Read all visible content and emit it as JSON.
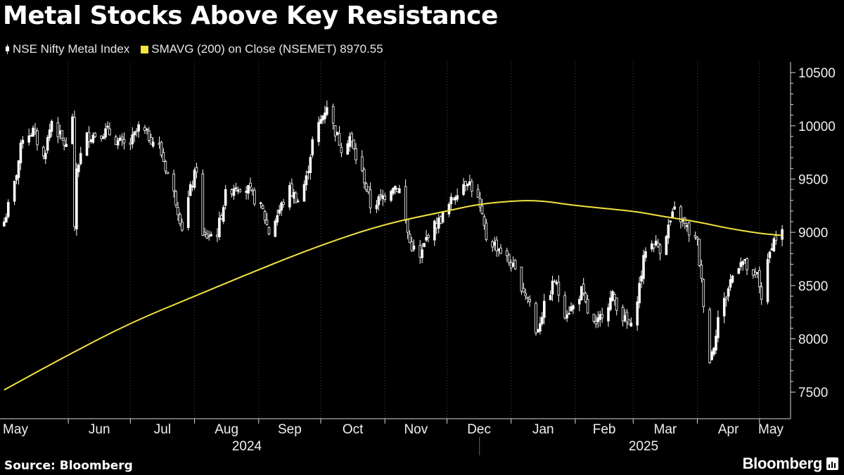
{
  "header": {
    "title": "Metal Stocks Above Key Resistance",
    "legend": [
      {
        "label": "NSE Nifty Metal Index",
        "color": "#ffffff",
        "icon": "candlestick-icon"
      },
      {
        "label": "SMAVG (200)  on Close (NSEMET) 8970.55",
        "color": "#f2e341",
        "icon": "square-swatch"
      }
    ]
  },
  "footer": {
    "source": "Source: Bloomberg",
    "brand": "Bloomberg"
  },
  "colors": {
    "background": "#000000",
    "candles": "#ffffff",
    "sma": "#f2e341",
    "axis": "#d9d9d9",
    "grid": "#4a4a4a"
  },
  "chart_data": {
    "type": "line",
    "title": "Metal Stocks Above Key Resistance",
    "yaxis": {
      "position": "right",
      "range": [
        7250,
        10600
      ],
      "ticks": [
        7500,
        8000,
        8500,
        9000,
        9500,
        10000,
        10500
      ]
    },
    "xaxis": {
      "months": [
        "May",
        "Jun",
        "Jul",
        "Aug",
        "Sep",
        "Oct",
        "Nov",
        "Dec",
        "Jan",
        "Feb",
        "Mar",
        "Apr",
        "May"
      ],
      "years": [
        "2024",
        "2025"
      ]
    },
    "grid": "vertical dotted at month boundaries",
    "series": [
      {
        "name": "NSE Nifty Metal Index",
        "kind": "candlestick-daily-close",
        "keypoints": [
          [
            "2024-05-01",
            9100
          ],
          [
            "2024-05-06",
            9450
          ],
          [
            "2024-05-10",
            9900
          ],
          [
            "2024-05-15",
            9950
          ],
          [
            "2024-05-20",
            9700
          ],
          [
            "2024-05-24",
            10050
          ],
          [
            "2024-05-28",
            9900
          ],
          [
            "2024-05-31",
            9800
          ],
          [
            "2024-06-03",
            10100
          ],
          [
            "2024-06-04",
            9000
          ],
          [
            "2024-06-05",
            9600
          ],
          [
            "2024-06-10",
            9900
          ],
          [
            "2024-06-20",
            9950
          ],
          [
            "2024-06-25",
            9850
          ],
          [
            "2024-06-30",
            9800
          ],
          [
            "2024-07-05",
            9980
          ],
          [
            "2024-07-10",
            9900
          ],
          [
            "2024-07-15",
            9800
          ],
          [
            "2024-07-19",
            9550
          ],
          [
            "2024-07-23",
            9300
          ],
          [
            "2024-07-26",
            9050
          ],
          [
            "2024-07-30",
            9400
          ],
          [
            "2024-08-02",
            9600
          ],
          [
            "2024-08-05",
            8950
          ],
          [
            "2024-08-12",
            9000
          ],
          [
            "2024-08-16",
            9350
          ],
          [
            "2024-08-21",
            9450
          ],
          [
            "2024-08-27",
            9400
          ],
          [
            "2024-09-03",
            9200
          ],
          [
            "2024-09-06",
            9000
          ],
          [
            "2024-09-12",
            9250
          ],
          [
            "2024-09-16",
            9400
          ],
          [
            "2024-09-20",
            9300
          ],
          [
            "2024-09-24",
            9500
          ],
          [
            "2024-09-27",
            9850
          ],
          [
            "2024-10-01",
            10050
          ],
          [
            "2024-10-04",
            10200
          ],
          [
            "2024-10-07",
            10000
          ],
          [
            "2024-10-11",
            9800
          ],
          [
            "2024-10-15",
            9900
          ],
          [
            "2024-10-18",
            9700
          ],
          [
            "2024-10-22",
            9500
          ],
          [
            "2024-10-25",
            9250
          ],
          [
            "2024-10-29",
            9300
          ],
          [
            "2024-11-01",
            9350
          ],
          [
            "2024-11-05",
            9450
          ],
          [
            "2024-11-08",
            9400
          ],
          [
            "2024-11-13",
            8900
          ],
          [
            "2024-11-18",
            8750
          ],
          [
            "2024-11-22",
            9000
          ],
          [
            "2024-11-27",
            9100
          ],
          [
            "2024-12-02",
            9250
          ],
          [
            "2024-12-06",
            9400
          ],
          [
            "2024-12-11",
            9500
          ],
          [
            "2024-12-16",
            9300
          ],
          [
            "2024-12-20",
            8950
          ],
          [
            "2024-12-26",
            8850
          ],
          [
            "2025-01-01",
            8700
          ],
          [
            "2025-01-06",
            8500
          ],
          [
            "2025-01-10",
            8350
          ],
          [
            "2025-01-13",
            8050
          ],
          [
            "2025-01-17",
            8300
          ],
          [
            "2025-01-22",
            8550
          ],
          [
            "2025-01-27",
            8250
          ],
          [
            "2025-01-31",
            8300
          ],
          [
            "2025-02-04",
            8450
          ],
          [
            "2025-02-07",
            8250
          ],
          [
            "2025-02-11",
            8100
          ],
          [
            "2025-02-14",
            8250
          ],
          [
            "2025-02-19",
            8400
          ],
          [
            "2025-02-24",
            8200
          ],
          [
            "2025-02-28",
            8100
          ],
          [
            "2025-03-04",
            8500
          ],
          [
            "2025-03-07",
            8850
          ],
          [
            "2025-03-11",
            8900
          ],
          [
            "2025-03-14",
            8850
          ],
          [
            "2025-03-18",
            9050
          ],
          [
            "2025-03-21",
            9200
          ],
          [
            "2025-03-25",
            9100
          ],
          [
            "2025-03-28",
            9000
          ],
          [
            "2025-04-01",
            8900
          ],
          [
            "2025-04-04",
            8350
          ],
          [
            "2025-04-07",
            7800
          ],
          [
            "2025-04-09",
            7950
          ],
          [
            "2025-04-11",
            8200
          ],
          [
            "2025-04-15",
            8400
          ],
          [
            "2025-04-17",
            8550
          ],
          [
            "2025-04-22",
            8750
          ],
          [
            "2025-04-24",
            8700
          ],
          [
            "2025-04-28",
            8550
          ],
          [
            "2025-04-30",
            8600
          ],
          [
            "2025-05-02",
            8400
          ],
          [
            "2025-05-05",
            8700
          ],
          [
            "2025-05-07",
            8900
          ],
          [
            "2025-05-09",
            8950
          ],
          [
            "2025-05-12",
            9000
          ]
        ]
      },
      {
        "name": "SMAVG (200)  on Close (NSEMET)",
        "last_value": 8970.55,
        "keypoints": [
          [
            "2024-05-01",
            7520
          ],
          [
            "2024-06-01",
            7850
          ],
          [
            "2024-07-01",
            8150
          ],
          [
            "2024-08-01",
            8400
          ],
          [
            "2024-09-01",
            8650
          ],
          [
            "2024-10-01",
            8880
          ],
          [
            "2024-11-01",
            9080
          ],
          [
            "2024-12-01",
            9200
          ],
          [
            "2024-12-15",
            9260
          ],
          [
            "2025-01-01",
            9295
          ],
          [
            "2025-01-15",
            9300
          ],
          [
            "2025-02-01",
            9250
          ],
          [
            "2025-03-01",
            9200
          ],
          [
            "2025-03-15",
            9150
          ],
          [
            "2025-04-01",
            9100
          ],
          [
            "2025-04-15",
            9040
          ],
          [
            "2025-05-01",
            8990
          ],
          [
            "2025-05-12",
            8970.55
          ]
        ]
      }
    ]
  }
}
